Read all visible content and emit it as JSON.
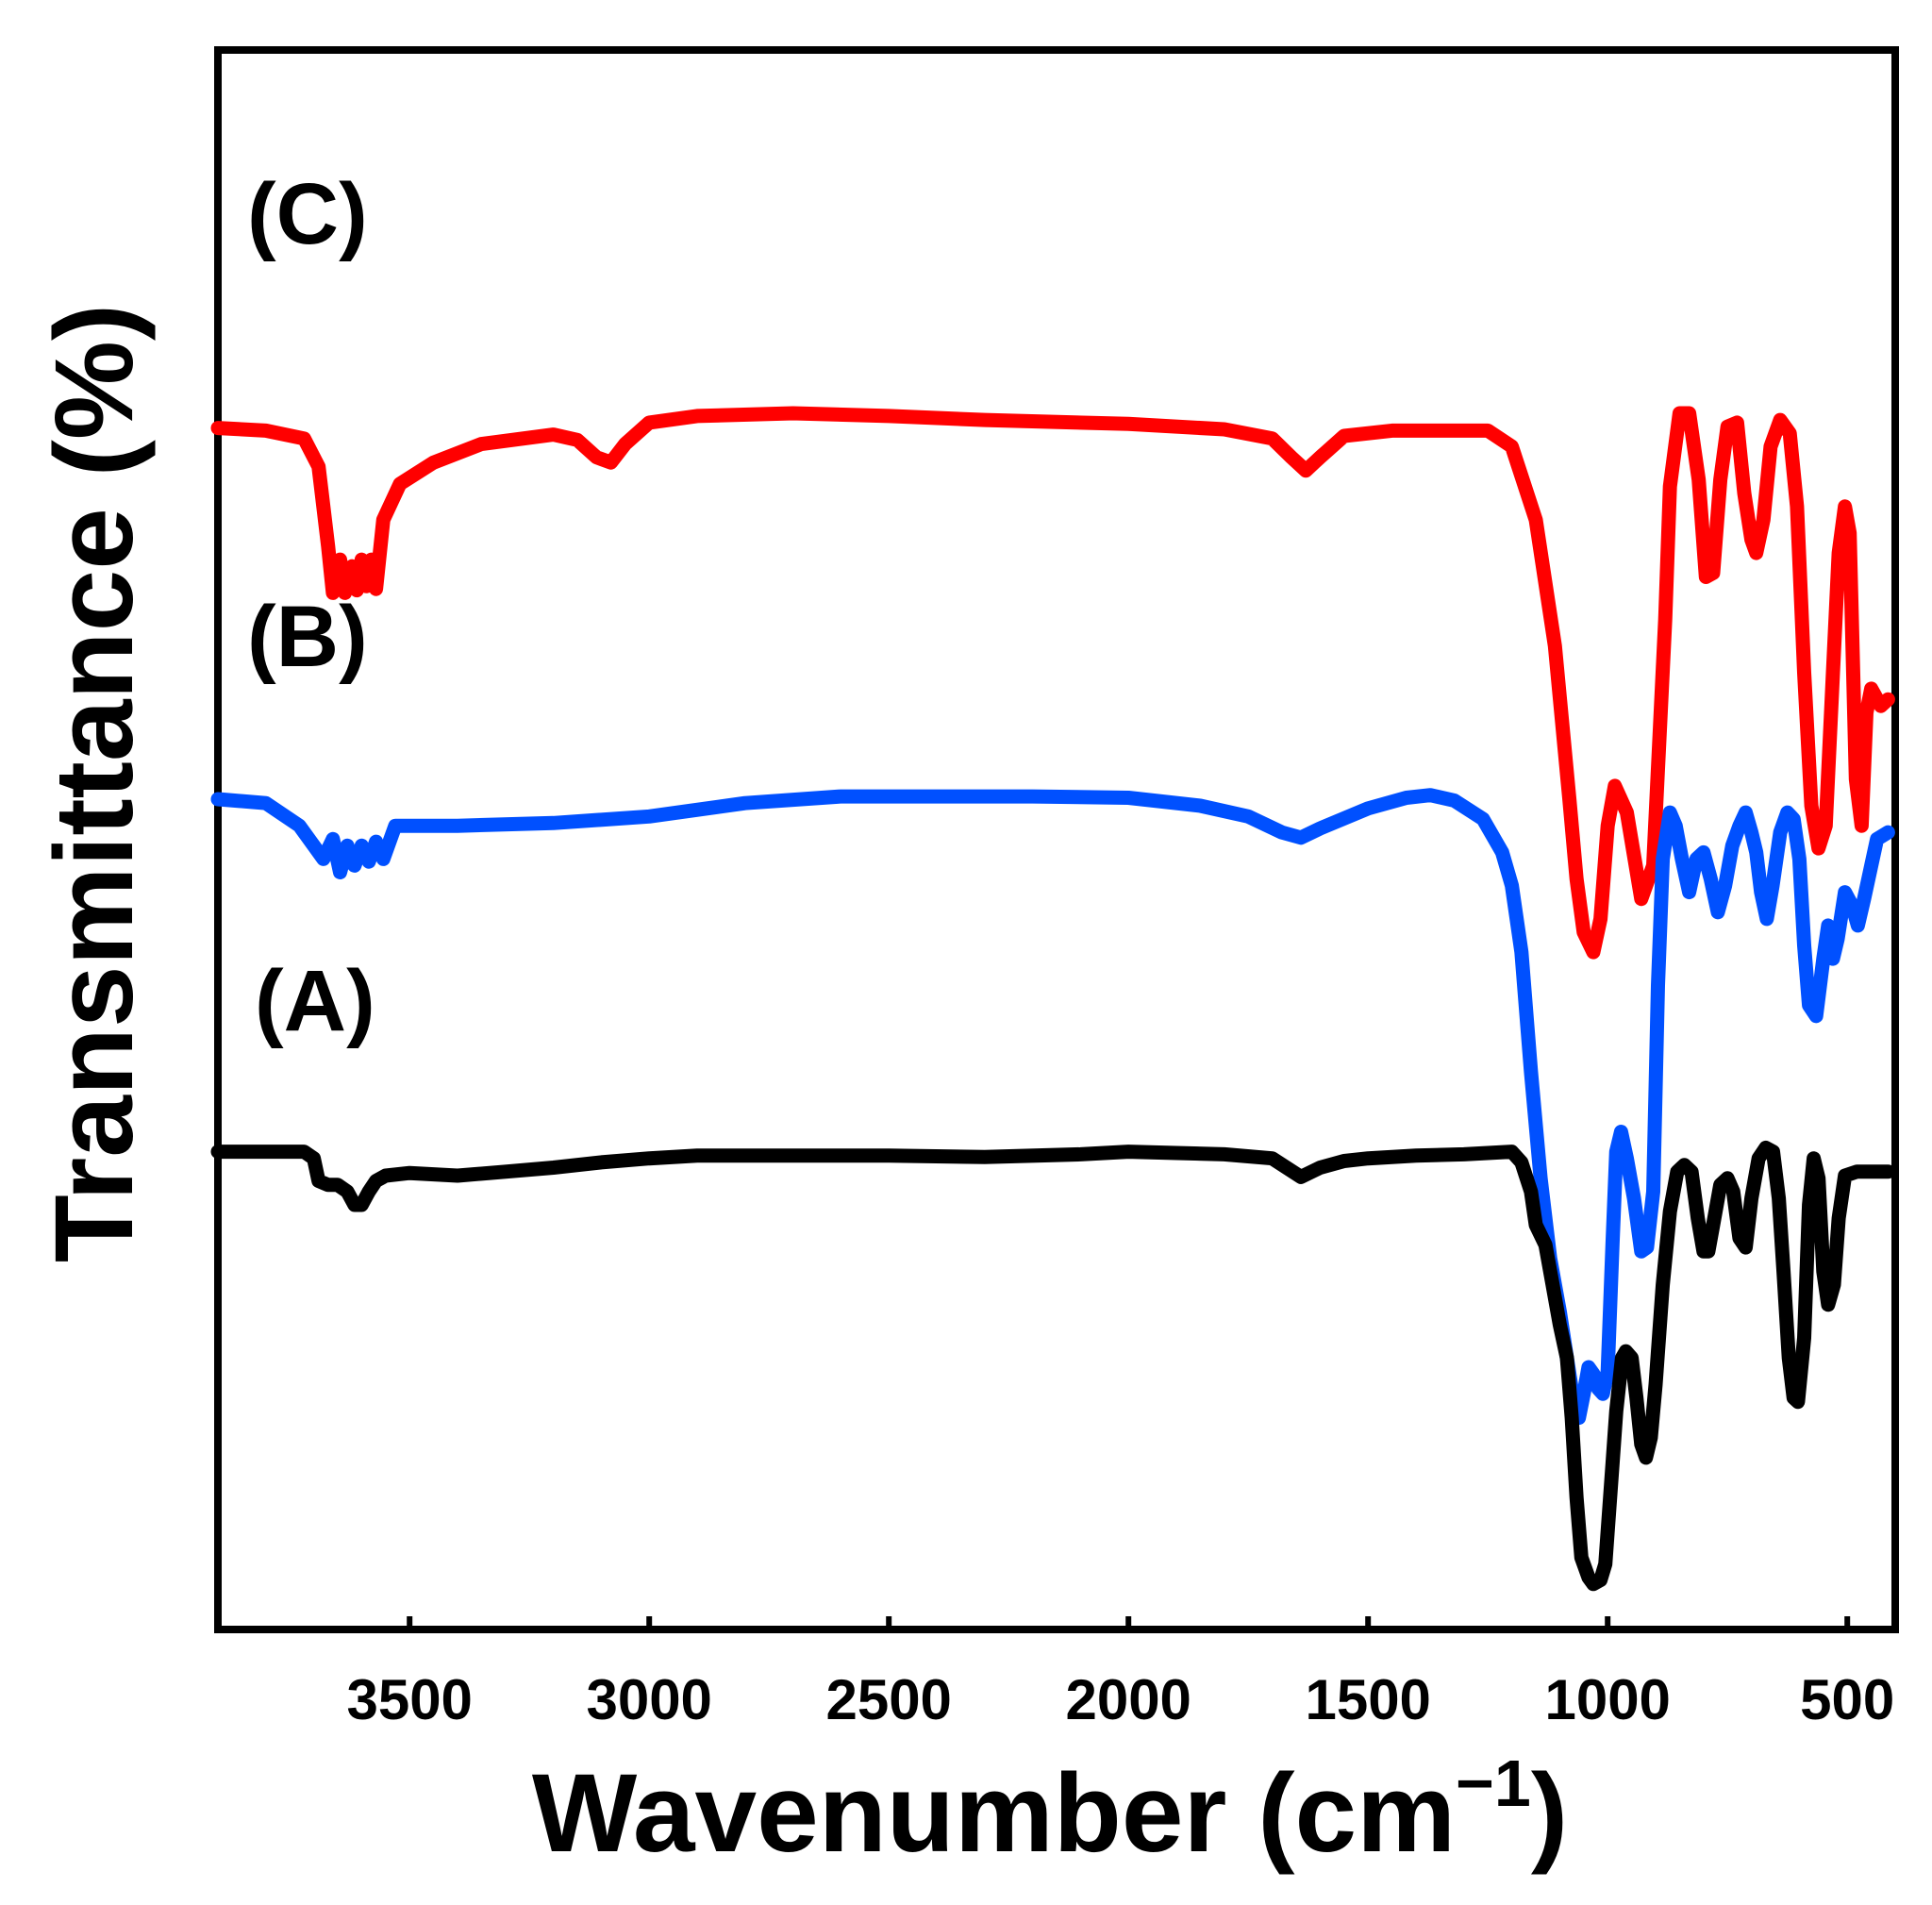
{
  "chart_data": {
    "type": "line",
    "title": "",
    "xlabel": "Wavenumber (cm",
    "xlabel_sup": "−1",
    "xlabel_close": ")",
    "ylabel": "Transmittance (%)",
    "xlim": [
      3900,
      400
    ],
    "x_ticks": [
      3500,
      3000,
      2500,
      2000,
      1500,
      1000,
      500
    ],
    "x_tick_labels": [
      "3500",
      "3000",
      "2500",
      "2000",
      "1500",
      "1000",
      "500"
    ],
    "y_ticks_shown": false,
    "y_range": [
      0,
      100
    ],
    "series": [
      {
        "name": "(C)",
        "color": "#ff0000",
        "points": [
          [
            3900,
            88.4
          ],
          [
            3800,
            88.2
          ],
          [
            3720,
            87.6
          ],
          [
            3690,
            85.5
          ],
          [
            3670,
            79.5
          ],
          [
            3660,
            76.0
          ],
          [
            3645,
            78.5
          ],
          [
            3635,
            76.0
          ],
          [
            3620,
            78.0
          ],
          [
            3610,
            76.2
          ],
          [
            3600,
            78.5
          ],
          [
            3590,
            76.5
          ],
          [
            3580,
            78.5
          ],
          [
            3570,
            76.3
          ],
          [
            3555,
            81.5
          ],
          [
            3520,
            84.2
          ],
          [
            3450,
            85.8
          ],
          [
            3350,
            87.2
          ],
          [
            3200,
            87.9
          ],
          [
            3150,
            87.5
          ],
          [
            3110,
            86.2
          ],
          [
            3080,
            85.8
          ],
          [
            3050,
            87.2
          ],
          [
            3000,
            88.8
          ],
          [
            2900,
            89.3
          ],
          [
            2700,
            89.5
          ],
          [
            2500,
            89.3
          ],
          [
            2300,
            89.0
          ],
          [
            2000,
            88.7
          ],
          [
            1800,
            88.3
          ],
          [
            1700,
            87.6
          ],
          [
            1660,
            86.2
          ],
          [
            1630,
            85.2
          ],
          [
            1600,
            86.2
          ],
          [
            1550,
            87.8
          ],
          [
            1450,
            88.2
          ],
          [
            1250,
            88.2
          ],
          [
            1200,
            87.0
          ],
          [
            1150,
            81.5
          ],
          [
            1110,
            72.0
          ],
          [
            1080,
            60.5
          ],
          [
            1065,
            54.5
          ],
          [
            1050,
            50.5
          ],
          [
            1030,
            49.0
          ],
          [
            1015,
            51.5
          ],
          [
            1000,
            58.5
          ],
          [
            985,
            61.5
          ],
          [
            960,
            59.5
          ],
          [
            930,
            53.0
          ],
          [
            905,
            55.5
          ],
          [
            880,
            74.0
          ],
          [
            870,
            84.0
          ],
          [
            850,
            89.5
          ],
          [
            830,
            89.5
          ],
          [
            810,
            84.5
          ],
          [
            795,
            77.2
          ],
          [
            780,
            77.5
          ],
          [
            765,
            84.5
          ],
          [
            750,
            88.5
          ],
          [
            730,
            88.8
          ],
          [
            715,
            83.5
          ],
          [
            700,
            80.0
          ],
          [
            690,
            79.0
          ],
          [
            675,
            81.5
          ],
          [
            660,
            87.0
          ],
          [
            640,
            89.0
          ],
          [
            620,
            88.0
          ],
          [
            605,
            82.5
          ],
          [
            590,
            70.0
          ],
          [
            575,
            60.0
          ],
          [
            560,
            56.8
          ],
          [
            545,
            58.5
          ],
          [
            530,
            70.0
          ],
          [
            518,
            79.0
          ],
          [
            505,
            82.5
          ],
          [
            495,
            80.5
          ],
          [
            482,
            62.0
          ],
          [
            470,
            58.5
          ],
          [
            460,
            67.0
          ],
          [
            450,
            68.8
          ],
          [
            430,
            67.5
          ],
          [
            415,
            68.0
          ]
        ]
      },
      {
        "name": "(B)",
        "color": "#0050ff",
        "points": [
          [
            3900,
            60.5
          ],
          [
            3800,
            60.2
          ],
          [
            3730,
            58.5
          ],
          [
            3700,
            57.0
          ],
          [
            3680,
            56.0
          ],
          [
            3660,
            57.5
          ],
          [
            3645,
            55.0
          ],
          [
            3630,
            57.0
          ],
          [
            3615,
            55.5
          ],
          [
            3600,
            57.0
          ],
          [
            3585,
            55.8
          ],
          [
            3570,
            57.3
          ],
          [
            3555,
            56.0
          ],
          [
            3530,
            58.5
          ],
          [
            3400,
            58.5
          ],
          [
            3200,
            58.7
          ],
          [
            3000,
            59.2
          ],
          [
            2800,
            60.2
          ],
          [
            2600,
            60.7
          ],
          [
            2400,
            60.7
          ],
          [
            2200,
            60.7
          ],
          [
            2000,
            60.6
          ],
          [
            1850,
            60.0
          ],
          [
            1750,
            59.2
          ],
          [
            1680,
            58.0
          ],
          [
            1640,
            57.6
          ],
          [
            1600,
            58.3
          ],
          [
            1500,
            59.8
          ],
          [
            1420,
            60.6
          ],
          [
            1370,
            60.8
          ],
          [
            1320,
            60.4
          ],
          [
            1260,
            59.0
          ],
          [
            1220,
            56.5
          ],
          [
            1200,
            54.0
          ],
          [
            1180,
            49.0
          ],
          [
            1160,
            40.0
          ],
          [
            1140,
            32.0
          ],
          [
            1120,
            26.0
          ],
          [
            1100,
            22.0
          ],
          [
            1085,
            18.5
          ],
          [
            1070,
            15.0
          ],
          [
            1060,
            14.0
          ],
          [
            1050,
            15.8
          ],
          [
            1040,
            17.8
          ],
          [
            1030,
            17.3
          ],
          [
            1020,
            16.2
          ],
          [
            1010,
            15.8
          ],
          [
            1000,
            17.5
          ],
          [
            990,
            27.0
          ],
          [
            982,
            34.0
          ],
          [
            972,
            35.5
          ],
          [
            960,
            33.5
          ],
          [
            945,
            30.5
          ],
          [
            930,
            26.5
          ],
          [
            918,
            26.8
          ],
          [
            905,
            31.0
          ],
          [
            895,
            46.5
          ],
          [
            885,
            56.0
          ],
          [
            870,
            59.5
          ],
          [
            858,
            58.5
          ],
          [
            845,
            56.0
          ],
          [
            830,
            53.5
          ],
          [
            815,
            56.0
          ],
          [
            800,
            56.5
          ],
          [
            785,
            54.5
          ],
          [
            770,
            52.0
          ],
          [
            755,
            54.0
          ],
          [
            740,
            57.0
          ],
          [
            725,
            58.5
          ],
          [
            712,
            59.5
          ],
          [
            700,
            58.0
          ],
          [
            690,
            56.5
          ],
          [
            680,
            53.5
          ],
          [
            668,
            51.5
          ],
          [
            656,
            54.0
          ],
          [
            640,
            58.0
          ],
          [
            625,
            59.5
          ],
          [
            612,
            59.0
          ],
          [
            600,
            56.0
          ],
          [
            590,
            49.5
          ],
          [
            580,
            45.0
          ],
          [
            565,
            44.2
          ],
          [
            550,
            48.5
          ],
          [
            540,
            51.0
          ],
          [
            530,
            48.5
          ],
          [
            520,
            50.0
          ],
          [
            505,
            53.5
          ],
          [
            490,
            52.5
          ],
          [
            478,
            51.0
          ],
          [
            465,
            53.0
          ],
          [
            450,
            55.5
          ],
          [
            438,
            57.5
          ],
          [
            415,
            58.0
          ]
        ]
      },
      {
        "name": "(A)",
        "color": "#000000",
        "points": [
          [
            3900,
            34.0
          ],
          [
            3800,
            34.0
          ],
          [
            3720,
            34.0
          ],
          [
            3700,
            33.5
          ],
          [
            3690,
            31.8
          ],
          [
            3670,
            31.5
          ],
          [
            3650,
            31.5
          ],
          [
            3630,
            31.0
          ],
          [
            3615,
            30.0
          ],
          [
            3600,
            30.0
          ],
          [
            3585,
            31.0
          ],
          [
            3570,
            31.8
          ],
          [
            3550,
            32.2
          ],
          [
            3500,
            32.4
          ],
          [
            3400,
            32.2
          ],
          [
            3300,
            32.5
          ],
          [
            3200,
            32.8
          ],
          [
            3100,
            33.2
          ],
          [
            3000,
            33.5
          ],
          [
            2900,
            33.7
          ],
          [
            2700,
            33.7
          ],
          [
            2500,
            33.7
          ],
          [
            2300,
            33.6
          ],
          [
            2100,
            33.8
          ],
          [
            2000,
            34.0
          ],
          [
            1900,
            33.9
          ],
          [
            1800,
            33.8
          ],
          [
            1700,
            33.5
          ],
          [
            1640,
            32.1
          ],
          [
            1600,
            32.8
          ],
          [
            1550,
            33.3
          ],
          [
            1500,
            33.5
          ],
          [
            1400,
            33.7
          ],
          [
            1300,
            33.8
          ],
          [
            1200,
            34.0
          ],
          [
            1180,
            33.2
          ],
          [
            1160,
            31.0
          ],
          [
            1150,
            28.5
          ],
          [
            1130,
            27.0
          ],
          [
            1115,
            24.0
          ],
          [
            1100,
            21.0
          ],
          [
            1085,
            18.5
          ],
          [
            1075,
            14.0
          ],
          [
            1065,
            8.0
          ],
          [
            1055,
            3.5
          ],
          [
            1040,
            2.0
          ],
          [
            1030,
            1.5
          ],
          [
            1015,
            1.8
          ],
          [
            1005,
            3.0
          ],
          [
            990,
            10.5
          ],
          [
            982,
            14.5
          ],
          [
            970,
            18.5
          ],
          [
            962,
            19.0
          ],
          [
            950,
            18.5
          ],
          [
            940,
            15.5
          ],
          [
            930,
            12.0
          ],
          [
            920,
            11.0
          ],
          [
            910,
            12.5
          ],
          [
            900,
            16.5
          ],
          [
            885,
            24.0
          ],
          [
            870,
            29.5
          ],
          [
            855,
            32.5
          ],
          [
            840,
            33.0
          ],
          [
            825,
            32.5
          ],
          [
            812,
            29.0
          ],
          [
            800,
            26.5
          ],
          [
            790,
            26.5
          ],
          [
            780,
            28.5
          ],
          [
            765,
            31.5
          ],
          [
            750,
            32.0
          ],
          [
            738,
            31.0
          ],
          [
            725,
            27.5
          ],
          [
            712,
            26.8
          ],
          [
            700,
            30.5
          ],
          [
            685,
            33.5
          ],
          [
            670,
            34.3
          ],
          [
            655,
            34.0
          ],
          [
            643,
            30.5
          ],
          [
            633,
            25.0
          ],
          [
            622,
            18.5
          ],
          [
            612,
            15.5
          ],
          [
            603,
            15.2
          ],
          [
            590,
            20.0
          ],
          [
            580,
            30.0
          ],
          [
            570,
            33.5
          ],
          [
            560,
            32.0
          ],
          [
            550,
            25.0
          ],
          [
            540,
            22.5
          ],
          [
            528,
            24.0
          ],
          [
            518,
            29.0
          ],
          [
            505,
            32.2
          ],
          [
            480,
            32.5
          ],
          [
            415,
            32.5
          ]
        ]
      }
    ]
  }
}
